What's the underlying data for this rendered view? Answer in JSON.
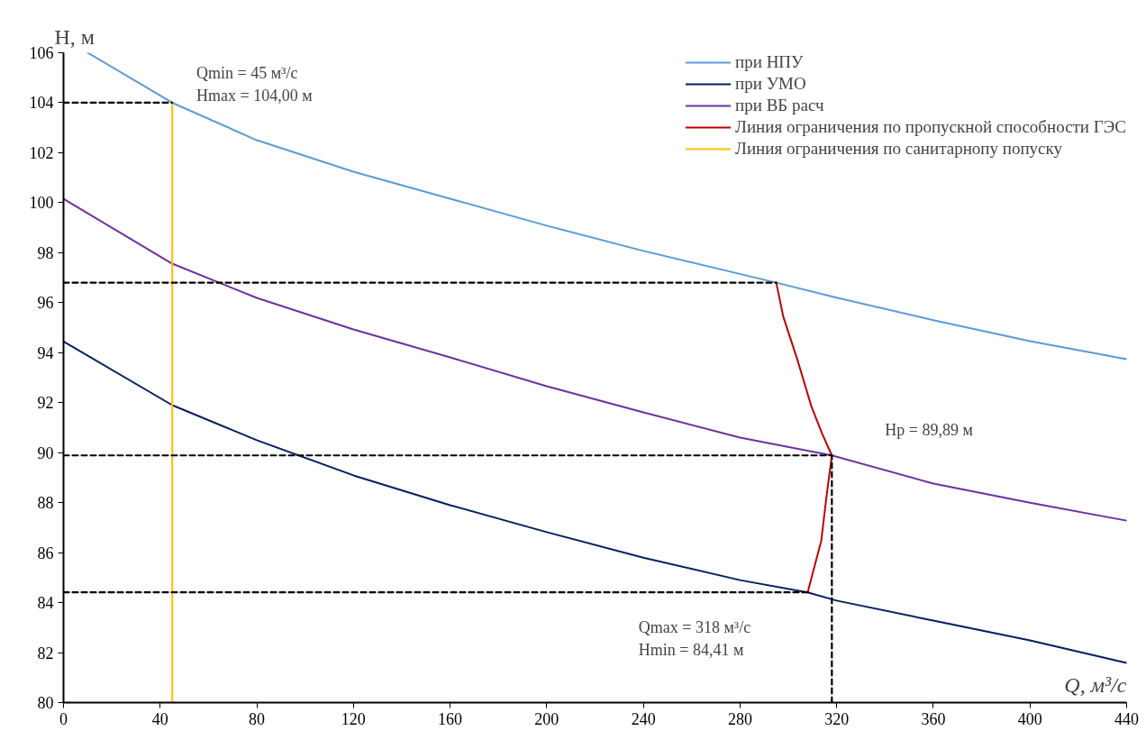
{
  "chart_data": {
    "type": "line",
    "xlabel": "Q, м³/с",
    "ylabel": "H, м",
    "xlim": [
      0,
      440
    ],
    "ylim": [
      80,
      106
    ],
    "xticks": [
      0,
      40,
      80,
      120,
      160,
      200,
      240,
      280,
      320,
      360,
      400,
      440
    ],
    "yticks": [
      80,
      82,
      84,
      86,
      88,
      90,
      92,
      94,
      96,
      98,
      100,
      102,
      104,
      106
    ],
    "grid": false,
    "legend": "top right",
    "marker": "none",
    "series": [
      {
        "name": "при НПУ",
        "color": "#5b9bd5",
        "x": [
          10,
          45,
          80,
          120,
          160,
          200,
          240,
          295,
          320,
          360,
          400,
          440
        ],
        "values": [
          106,
          104,
          102.5,
          101.24,
          100.16,
          99.08,
          98.07,
          96.8,
          96.2,
          95.3,
          94.46,
          93.74
        ]
      },
      {
        "name": "при УМО",
        "color": "#002060",
        "x": [
          0,
          45,
          80,
          120,
          160,
          200,
          240,
          280,
          308,
          320,
          360,
          400,
          440
        ],
        "values": [
          94.45,
          91.9,
          90.5,
          89.09,
          87.9,
          86.82,
          85.8,
          84.9,
          84.41,
          84.08,
          83.28,
          82.49,
          81.59
        ]
      },
      {
        "name": "при ВБ расч",
        "color": "#7030a0",
        "x": [
          0,
          45,
          80,
          120,
          160,
          200,
          240,
          280,
          318,
          360,
          400,
          440
        ],
        "values": [
          100.15,
          97.56,
          96.19,
          94.93,
          93.81,
          92.66,
          91.61,
          90.6,
          89.89,
          88.76,
          88.0,
          87.28
        ]
      },
      {
        "name": "Линия ограничения по пропускной способности ГЭС",
        "color": "#c00000",
        "x": [
          295,
          297.9,
          303.9,
          309.5,
          313.9,
          318,
          315.8,
          313.6,
          310.6,
          308
        ],
        "values": [
          96.8,
          95.44,
          93.67,
          91.86,
          90.78,
          89.89,
          88.26,
          86.46,
          85.37,
          84.41
        ]
      },
      {
        "name": "Линия ограничения по санитарнопу попуску",
        "color": "#ffc000",
        "x": [
          45,
          45
        ],
        "values": [
          80,
          104
        ]
      },
      {
        "color": "#000000",
        "line_style": "dashed",
        "x": [
          0,
          45
        ],
        "values": [
          104,
          104
        ]
      },
      {
        "color": "#000000",
        "line_style": "dashed",
        "x": [
          0,
          295
        ],
        "values": [
          96.8,
          96.8
        ]
      },
      {
        "color": "#000000",
        "line_style": "dashed",
        "x": [
          0,
          318
        ],
        "values": [
          89.89,
          89.89
        ]
      },
      {
        "color": "#000000",
        "line_style": "dashed",
        "x": [
          0,
          308
        ],
        "values": [
          84.41,
          84.41
        ]
      },
      {
        "color": "#000000",
        "line_style": "dashed",
        "x": [
          318,
          318
        ],
        "values": [
          80,
          89.89
        ]
      }
    ],
    "annotations": [
      "Qmin = 45 м³/с",
      "Hmax = 104,00 м",
      "Hp = 89,89 м",
      "Qmax = 318 м³/с",
      "Hmin = 84,41 м"
    ]
  }
}
